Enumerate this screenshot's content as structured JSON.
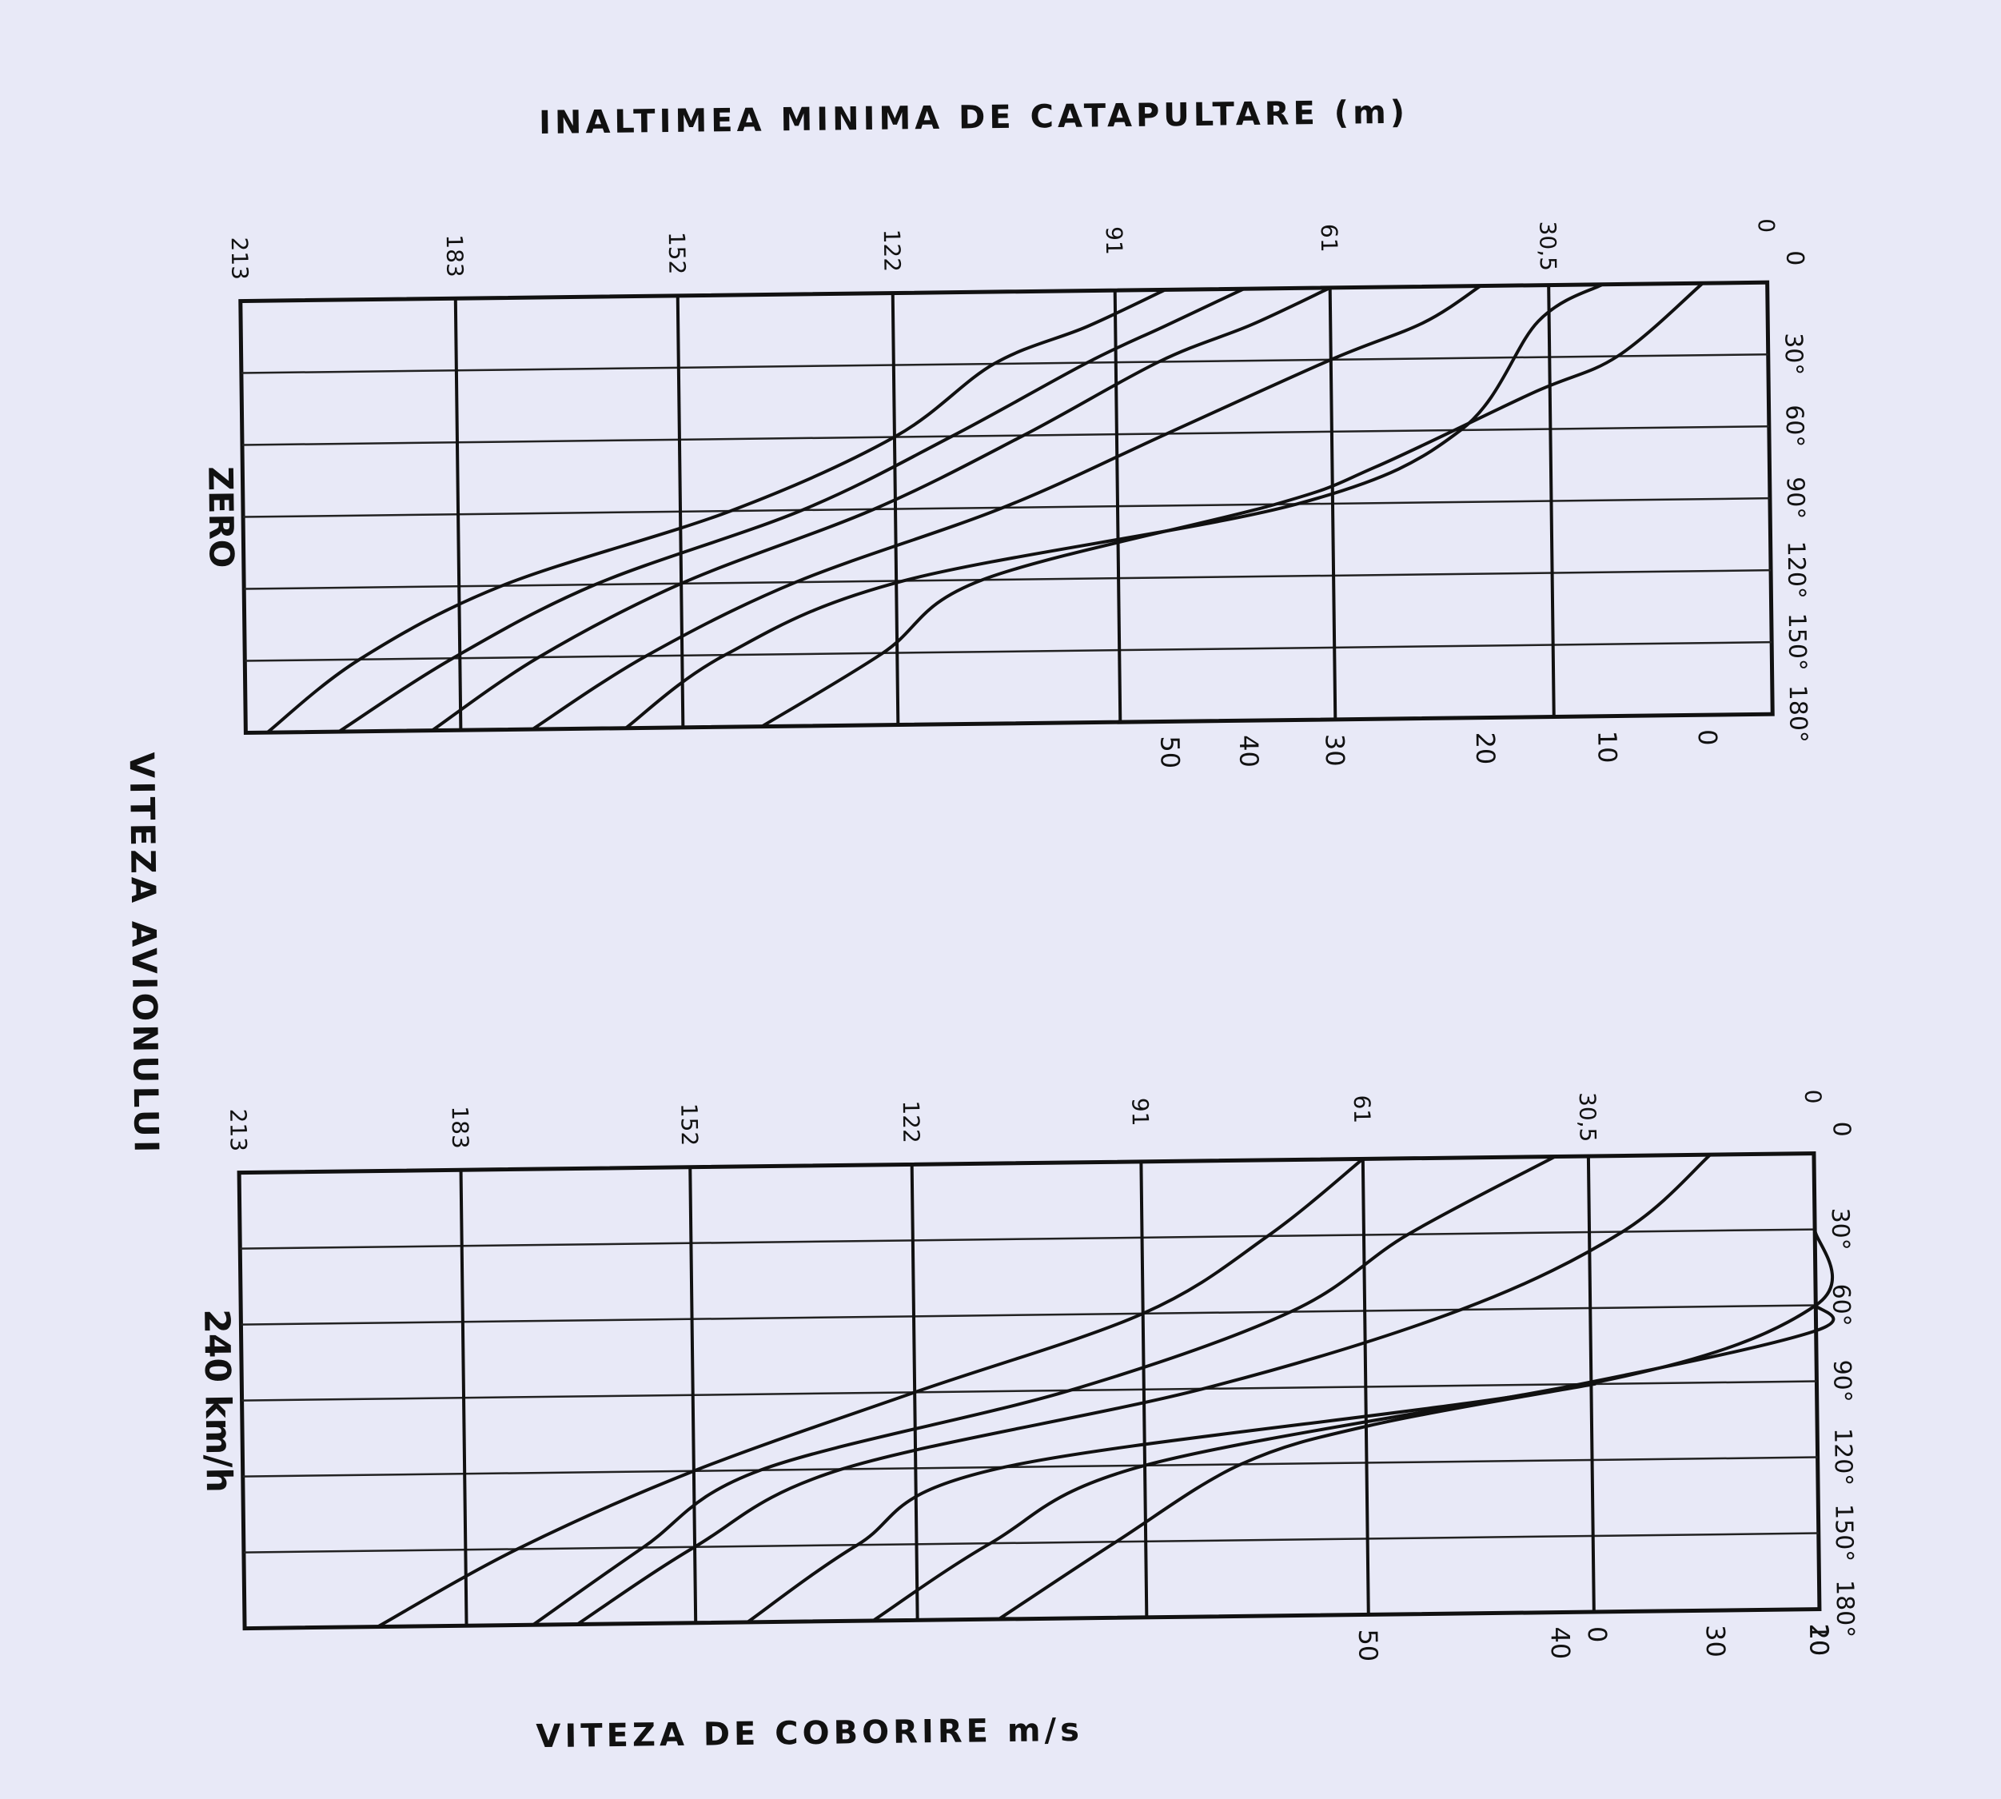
{
  "figure": {
    "title": "INALTIMEA MINIMA DE CATAPULTARE (m)",
    "vertical_caption": "VITEZA AVIONULUI",
    "bottom_caption": "VITEZA DE COBORIRE m/s"
  },
  "chart_data": [
    {
      "type": "line",
      "panel_label": "ZERO",
      "height_ticks": [
        "213",
        "183",
        "152",
        "122",
        "91",
        "61",
        "30,5",
        "0"
      ],
      "height_values": [
        213,
        183,
        152,
        122,
        91,
        61,
        30.5,
        0
      ],
      "angle_labels": [
        "30°",
        "60°",
        "90°",
        "120°",
        "150°",
        "180°"
      ],
      "angle_values": [
        0,
        30,
        60,
        90,
        120,
        150,
        180
      ],
      "height_range": [
        213,
        0
      ],
      "angle_range": [
        0,
        180
      ],
      "grid": true,
      "series": [
        {
          "name": "50",
          "points": [
            [
              84,
              0
            ],
            [
              95,
              15
            ],
            [
              108,
              30
            ],
            [
              122,
              60
            ],
            [
              145,
              90
            ],
            [
              177,
              120
            ],
            [
              197,
              150
            ],
            [
              210,
              180
            ]
          ]
        },
        {
          "name": "40",
          "points": [
            [
              73,
              0
            ],
            [
              84,
              15
            ],
            [
              95,
              30
            ],
            [
              114,
              60
            ],
            [
              135,
              90
            ],
            [
              164,
              120
            ],
            [
              184,
              150
            ],
            [
              200,
              180
            ]
          ]
        },
        {
          "name": "30",
          "points": [
            [
              61,
              0
            ],
            [
              72,
              15
            ],
            [
              85,
              30
            ],
            [
              104,
              60
            ],
            [
              125,
              90
            ],
            [
              152,
              120
            ],
            [
              172,
              150
            ],
            [
              187,
              180
            ]
          ]
        },
        {
          "name": "20",
          "points": [
            [
              40,
              0
            ],
            [
              48,
              15
            ],
            [
              61,
              30
            ],
            [
              84,
              60
            ],
            [
              107,
              90
            ],
            [
              136,
              120
            ],
            [
              157,
              150
            ],
            [
              173,
              180
            ]
          ]
        },
        {
          "name": "10",
          "points": [
            [
              23,
              0
            ],
            [
              32,
              15
            ],
            [
              43,
              60
            ],
            [
              66,
              90
            ],
            [
              121,
              120
            ],
            [
              146,
              150
            ],
            [
              160,
              180
            ]
          ]
        },
        {
          "name": "0",
          "points": [
            [
              9,
              0
            ],
            [
              21,
              30
            ],
            [
              33,
              45
            ],
            [
              55,
              75
            ],
            [
              69,
              90
            ],
            [
              110,
              120
            ],
            [
              124,
              150
            ],
            [
              141,
              180
            ]
          ]
        }
      ]
    },
    {
      "type": "line",
      "panel_label": "240 km/h",
      "height_ticks": [
        "213",
        "183",
        "152",
        "122",
        "91",
        "61",
        "30,5",
        "0"
      ],
      "height_values": [
        213,
        183,
        152,
        122,
        91,
        61,
        30.5,
        0
      ],
      "angle_labels": [
        "30°",
        "60°",
        "90°",
        "120°",
        "150°",
        "180°"
      ],
      "angle_values": [
        0,
        30,
        60,
        90,
        120,
        150,
        180
      ],
      "height_range": [
        213,
        0
      ],
      "angle_range": [
        0,
        180
      ],
      "grid": true,
      "series": [
        {
          "name": "50",
          "points": [
            [
              61,
              0
            ],
            [
              74,
              30
            ],
            [
              91,
              60
            ],
            [
              122,
              90
            ],
            [
              152,
              120
            ],
            [
              176,
              150
            ],
            [
              195,
              180
            ]
          ]
        },
        {
          "name": "40",
          "points": [
            [
              35,
              0
            ],
            [
              55,
              30
            ],
            [
              71,
              60
            ],
            [
              101,
              90
            ],
            [
              143,
              120
            ],
            [
              159,
              150
            ],
            [
              174,
              180
            ]
          ]
        },
        {
          "name": "30",
          "points": [
            [
              14,
              0
            ],
            [
              26,
              30
            ],
            [
              48,
              60
            ],
            [
              83,
              90
            ],
            [
              132,
              120
            ],
            [
              152,
              150
            ],
            [
              168,
              180
            ]
          ]
        },
        {
          "name": "20",
          "points": [
            [
              0,
              30
            ],
            [
              0,
              60
            ],
            [
              31,
              90
            ],
            [
              110,
              120
            ],
            [
              130,
              150
            ],
            [
              145,
              180
            ]
          ]
        },
        {
          "name": "10",
          "points": [
            [
              0,
              60
            ],
            [
              0,
              70
            ],
            [
              32,
              90
            ],
            [
              91,
              120
            ],
            [
              112,
              150
            ],
            [
              128,
              180
            ]
          ]
        },
        {
          "name": "0",
          "points": [
            [
              30,
              90
            ],
            [
              60,
              105
            ],
            [
              78,
              120
            ],
            [
              95,
              150
            ],
            [
              111,
              180
            ]
          ]
        }
      ]
    }
  ]
}
